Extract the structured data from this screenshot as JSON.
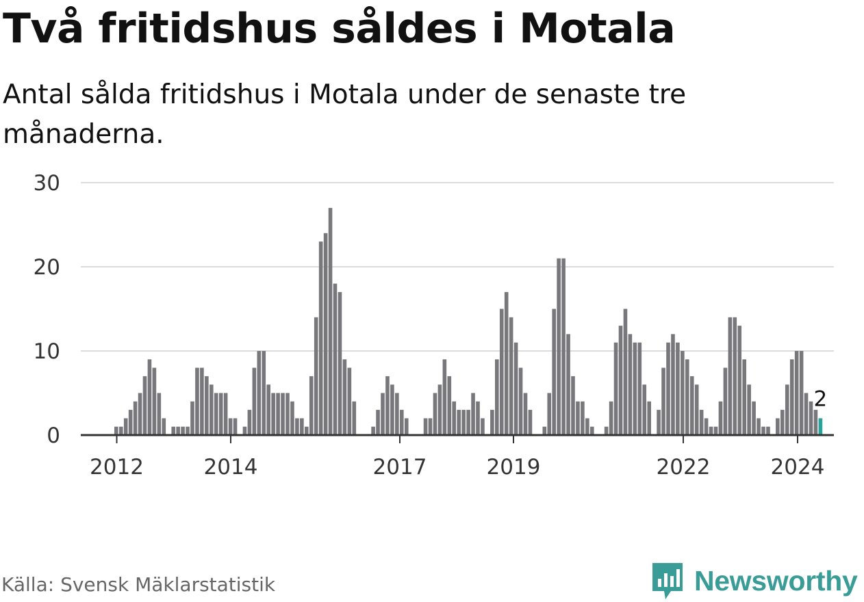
{
  "title": "Två fritidshus såldes i Motala",
  "subtitle": "Antal sålda fritidshus i Motala under de senaste tre månaderna.",
  "source": "Källa: Svensk Mäklarstatistik",
  "brand": {
    "name": "Newsworthy",
    "logo_icon": "bar-chart-logo-icon",
    "color": "#3a9c96"
  },
  "chart_data": {
    "type": "bar",
    "title": "Två fritidshus såldes i Motala",
    "xlabel": "",
    "ylabel": "",
    "ylim": [
      0,
      30
    ],
    "yticks": [
      "0",
      "10",
      "20",
      "30"
    ],
    "xtick_labels": [
      "2012",
      "2014",
      "2017",
      "2019",
      "2022",
      "2024"
    ],
    "bar_color": "#77777c",
    "highlight_color": "#27a39b",
    "highlight_label": "2",
    "values": [
      1,
      1,
      2,
      3,
      4,
      5,
      7,
      9,
      8,
      5,
      2,
      0,
      1,
      1,
      1,
      1,
      4,
      8,
      8,
      7,
      6,
      5,
      5,
      5,
      2,
      2,
      0,
      1,
      3,
      8,
      10,
      10,
      6,
      5,
      5,
      5,
      5,
      4,
      2,
      2,
      1,
      7,
      14,
      23,
      24,
      27,
      18,
      17,
      9,
      8,
      4,
      0,
      0,
      0,
      1,
      3,
      5,
      7,
      6,
      5,
      3,
      2,
      0,
      0,
      0,
      2,
      2,
      5,
      6,
      9,
      7,
      4,
      3,
      3,
      3,
      5,
      4,
      2,
      0,
      3,
      9,
      15,
      17,
      14,
      11,
      8,
      5,
      3,
      0,
      0,
      1,
      5,
      15,
      21,
      21,
      12,
      7,
      4,
      4,
      2,
      1,
      0,
      0,
      1,
      4,
      11,
      13,
      15,
      12,
      11,
      11,
      6,
      4,
      0,
      3,
      8,
      11,
      12,
      11,
      10,
      9,
      7,
      6,
      3,
      2,
      1,
      1,
      4,
      8,
      14,
      14,
      13,
      9,
      6,
      4,
      2,
      1,
      1,
      0,
      2,
      3,
      6,
      9,
      10,
      10,
      5,
      4,
      3,
      2
    ]
  }
}
